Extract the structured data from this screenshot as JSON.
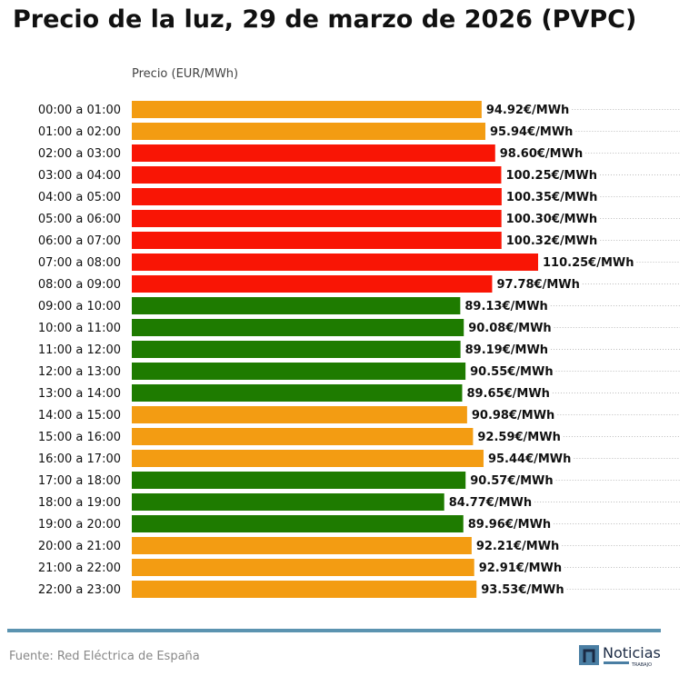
{
  "chart_data": {
    "type": "bar",
    "orientation": "horizontal",
    "title": "Precio de la luz, 29 de marzo de 2026 (PVPC)",
    "xlabel": "Precio (EUR/MWh)",
    "ylabel": "",
    "xlim": [
      0,
      110.25
    ],
    "grid": "dotted lines to the right of value labels",
    "value_suffix": "€/MWh",
    "categories": [
      "00:00 a 01:00",
      "01:00 a 02:00",
      "02:00 a 03:00",
      "03:00 a 04:00",
      "04:00 a 05:00",
      "05:00 a 06:00",
      "06:00 a 07:00",
      "07:00 a 08:00",
      "08:00 a 09:00",
      "09:00 a 10:00",
      "10:00 a 11:00",
      "11:00 a 12:00",
      "12:00 a 13:00",
      "13:00 a 14:00",
      "14:00 a 15:00",
      "15:00 a 16:00",
      "16:00 a 17:00",
      "17:00 a 18:00",
      "18:00 a 19:00",
      "19:00 a 20:00",
      "20:00 a 21:00",
      "21:00 a 22:00",
      "22:00 a 23:00"
    ],
    "values": [
      94.92,
      95.94,
      98.6,
      100.25,
      100.35,
      100.3,
      100.32,
      110.25,
      97.78,
      89.13,
      90.08,
      89.19,
      90.55,
      89.65,
      90.98,
      92.59,
      95.44,
      90.57,
      84.77,
      89.96,
      92.21,
      92.91,
      93.53
    ],
    "value_labels": [
      "94.92€/MWh",
      "95.94€/MWh",
      "98.60€/MWh",
      "100.25€/MWh",
      "100.35€/MWh",
      "100.30€/MWh",
      "100.32€/MWh",
      "110.25€/MWh",
      "97.78€/MWh",
      "89.13€/MWh",
      "90.08€/MWh",
      "89.19€/MWh",
      "90.55€/MWh",
      "89.65€/MWh",
      "90.98€/MWh",
      "92.59€/MWh",
      "95.44€/MWh",
      "90.57€/MWh",
      "84.77€/MWh",
      "89.96€/MWh",
      "92.21€/MWh",
      "92.91€/MWh",
      "93.53€/MWh"
    ],
    "bar_levels": [
      "mid",
      "mid",
      "high",
      "high",
      "high",
      "high",
      "high",
      "high",
      "high",
      "low",
      "low",
      "low",
      "low",
      "low",
      "mid",
      "mid",
      "mid",
      "low",
      "low",
      "low",
      "mid",
      "mid",
      "mid"
    ],
    "colors": {
      "high": "#f91505",
      "mid": "#f39c12",
      "low": "#1e7b00"
    }
  },
  "footer": {
    "source": "Fuente: Red Eléctrica de España",
    "rule_color": "#5b93b0"
  },
  "logo": {
    "name": "Noticias",
    "sub": "TRABAJO"
  }
}
